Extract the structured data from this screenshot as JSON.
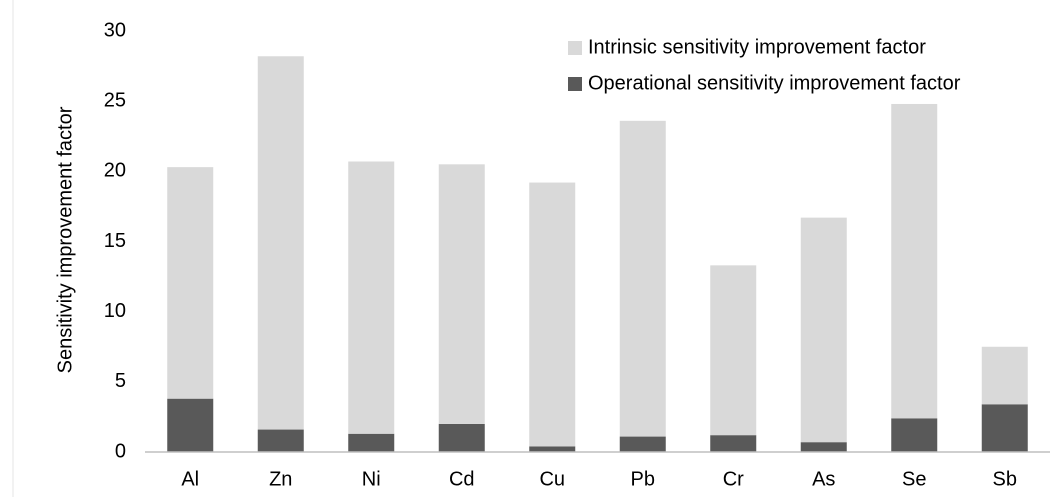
{
  "chart_data": {
    "type": "stacked_bar",
    "y_label": "Sensitivity improvement factor",
    "categories": [
      "Al",
      "Zn",
      "Ni",
      "Cd",
      "Cu",
      "Pb",
      "Cr",
      "As",
      "Se",
      "Sb"
    ],
    "series": [
      {
        "name": "Operational sensitivity improvement factor",
        "color": "#595959",
        "values": [
          3.8,
          1.6,
          1.3,
          2.0,
          0.4,
          1.1,
          1.2,
          0.7,
          2.4,
          3.4
        ]
      },
      {
        "name": "Intrinsic sensitivity improvement factor",
        "color": "#d9d9d9",
        "values": [
          16.5,
          26.6,
          19.4,
          18.5,
          18.8,
          22.5,
          12.1,
          16.0,
          22.4,
          4.1
        ]
      }
    ],
    "ylim": [
      0,
      30
    ],
    "yticks": [
      0,
      5,
      10,
      15,
      20,
      25,
      30
    ],
    "grid": false,
    "legend": "upper right"
  }
}
